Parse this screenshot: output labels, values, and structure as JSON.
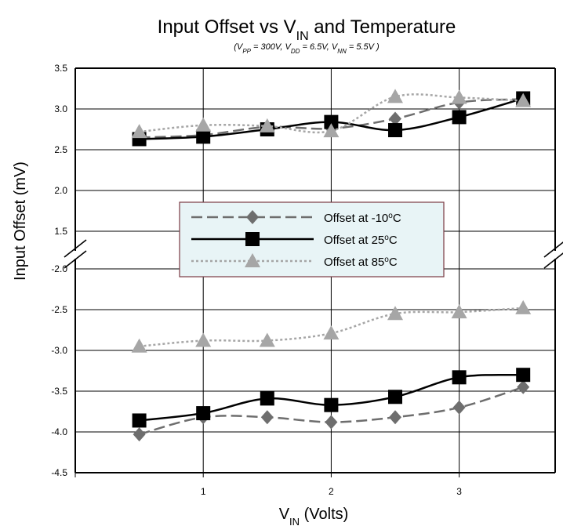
{
  "chart_data": {
    "type": "line",
    "title": "Input Offset vs V",
    "title_sub": "IN",
    "title_suffix": " and Temperature",
    "subtitle_parts": [
      {
        "t": "V",
        "s": "PP",
        "r": " = 300V, "
      },
      {
        "t": "V",
        "s": "DD",
        "r": " = 6.5V, "
      },
      {
        "t": "V",
        "s": "NN",
        "r": "  = 5.5V )"
      }
    ],
    "subtitle_prefix": "(",
    "xlabel": "V",
    "xlabel_sub": "IN",
    "xlabel_suffix": " (Volts)",
    "ylabel": "Input Offset (mV)",
    "xlim": [
      0,
      3.75
    ],
    "xticks": [
      "1",
      "2",
      "3"
    ],
    "ylim_upper": [
      1.5,
      3.5
    ],
    "ylim_lower": [
      -4.5,
      -2.0
    ],
    "yticks_upper": [
      "3.5",
      "3.0",
      "2.5",
      "2.0",
      "1.5"
    ],
    "yticks_lower": [
      "-2.0",
      "-2.5",
      "-3.0",
      "-3.5",
      "-4.0",
      "-4.5"
    ],
    "grid": true,
    "legend_position": "center",
    "x": [
      0.5,
      1.0,
      1.5,
      2.0,
      2.5,
      3.0,
      3.5
    ],
    "series": [
      {
        "name": "Offset at -10°C",
        "legend_label": "Offset at -10",
        "legend_unit_sup": "o",
        "legend_unit": "C",
        "color": "#6e6e6e",
        "marker": "diamond",
        "line": "dashed",
        "upper": [
          2.65,
          2.68,
          2.78,
          2.76,
          2.88,
          3.08,
          3.12
        ],
        "lower": [
          -4.03,
          -3.82,
          -3.82,
          -3.88,
          -3.82,
          -3.7,
          -3.45
        ]
      },
      {
        "name": "Offset at 25°C",
        "legend_label": "Offset at  25",
        "legend_unit_sup": "o",
        "legend_unit": "C",
        "color": "#000000",
        "marker": "square",
        "line": "solid",
        "upper": [
          2.63,
          2.66,
          2.75,
          2.84,
          2.74,
          2.9,
          3.13
        ],
        "lower": [
          -3.86,
          -3.77,
          -3.59,
          -3.67,
          -3.57,
          -3.33,
          -3.3
        ]
      },
      {
        "name": "Offset at 85°C",
        "legend_label": "Offset at  85",
        "legend_unit_sup": "o",
        "legend_unit": "C",
        "color": "#a6a6a6",
        "marker": "triangle",
        "line": "dotted",
        "upper": [
          2.72,
          2.8,
          2.79,
          2.73,
          3.15,
          3.14,
          3.1
        ],
        "lower": [
          -2.95,
          -2.88,
          -2.88,
          -2.79,
          -2.55,
          -2.53,
          -2.48
        ]
      }
    ],
    "legend_bg": "#e8f4f6",
    "legend_border": "#7a3a44"
  }
}
